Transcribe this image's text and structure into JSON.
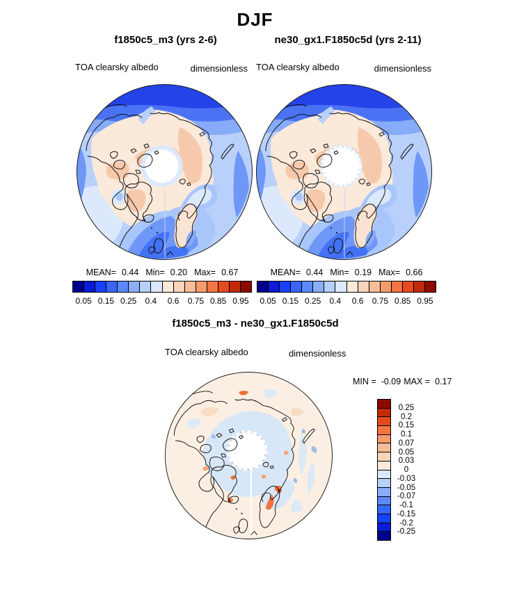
{
  "title": "DJF",
  "panels": [
    {
      "title": "f1850c5_m3 (yrs 2-6)",
      "var_label": "TOA clearsky albedo",
      "units": "dimensionless",
      "stats": {
        "mean_label": "MEAN=",
        "mean": "0.44",
        "min_label": "Min=",
        "min": "0.20",
        "max_label": "Max=",
        "max": "0.67"
      },
      "colorbar": {
        "ticks": [
          "0.05",
          "0.15",
          "0.25",
          "0.4",
          "0.6",
          "0.75",
          "0.85",
          "0.95"
        ],
        "colors": [
          "#00008C",
          "#0A1CD6",
          "#1740FA",
          "#3865FA",
          "#5C88F8",
          "#8AAEF9",
          "#B6CFFB",
          "#DCE9FD",
          "#FBE9DA",
          "#F9D4BA",
          "#F7BC99",
          "#F59B6E",
          "#F37544",
          "#E64B20",
          "#C22A0B",
          "#8C0A00"
        ]
      }
    },
    {
      "title": "ne30_gx1.F1850c5d (yrs 2-11)",
      "var_label": "TOA clearsky albedo",
      "units": "dimensionless",
      "stats": {
        "mean_label": "MEAN=",
        "mean": "0.44",
        "min_label": "Min=",
        "min": "0.19",
        "max_label": "Max=",
        "max": "0.66"
      },
      "colorbar": {
        "ticks": [
          "0.05",
          "0.15",
          "0.25",
          "0.4",
          "0.6",
          "0.75",
          "0.85",
          "0.95"
        ],
        "colors": [
          "#00008C",
          "#0A1CD6",
          "#1740FA",
          "#3865FA",
          "#5C88F8",
          "#8AAEF9",
          "#B6CFFB",
          "#DCE9FD",
          "#FBE9DA",
          "#F9D4BA",
          "#F7BC99",
          "#F59B6E",
          "#F37544",
          "#E64B20",
          "#C22A0B",
          "#8C0A00"
        ]
      }
    }
  ],
  "diff_panel": {
    "title": "f1850c5_m3 - ne30_gx1.F1850c5d",
    "var_label": "TOA clearsky albedo",
    "units": "dimensionless",
    "stats": {
      "min_label": "MIN =",
      "min": "-0.09",
      "max_label": "MAX =",
      "max": "0.17"
    },
    "colorbar": {
      "ticks": [
        "0.25",
        "0.2",
        "0.15",
        "0.1",
        "0.07",
        "0.05",
        "0.03",
        "0",
        "-0.03",
        "-0.05",
        "-0.07",
        "-0.1",
        "-0.15",
        "-0.2",
        "-0.25"
      ],
      "colors": [
        "#8C0A00",
        "#C22A0B",
        "#E64B20",
        "#F37544",
        "#F59B6E",
        "#F7BC99",
        "#F9D4BA",
        "#FBE9DA",
        "#DCE9FD",
        "#B6CFFB",
        "#8AAEF9",
        "#5C88F8",
        "#3865FA",
        "#1740FA",
        "#0A1CD6",
        "#00008C"
      ]
    }
  },
  "chart_data": [
    {
      "type": "heatmap",
      "subtype": "filled-contour polar stereographic map, Northern Hemisphere pole-centered",
      "title": "f1850c5_m3 (yrs 2-6)",
      "season": "DJF",
      "variable": "TOA clearsky albedo",
      "units": "dimensionless",
      "stats": {
        "mean": 0.44,
        "min": 0.2,
        "max": 0.67
      },
      "contour_levels": [
        0.05,
        0.1,
        0.15,
        0.2,
        0.25,
        0.3,
        0.4,
        0.5,
        0.6,
        0.7,
        0.75,
        0.8,
        0.85,
        0.9,
        0.95
      ],
      "labeled_levels": [
        0.05,
        0.15,
        0.25,
        0.4,
        0.6,
        0.75,
        0.85,
        0.95
      ],
      "colormap": "blue-to-red diverging, 16 classes",
      "legend_position": "below"
    },
    {
      "type": "heatmap",
      "subtype": "filled-contour polar stereographic map, Northern Hemisphere pole-centered",
      "title": "ne30_gx1.F1850c5d (yrs 2-11)",
      "season": "DJF",
      "variable": "TOA clearsky albedo",
      "units": "dimensionless",
      "stats": {
        "mean": 0.44,
        "min": 0.19,
        "max": 0.66
      },
      "contour_levels": [
        0.05,
        0.1,
        0.15,
        0.2,
        0.25,
        0.3,
        0.4,
        0.5,
        0.6,
        0.7,
        0.75,
        0.8,
        0.85,
        0.9,
        0.95
      ],
      "labeled_levels": [
        0.05,
        0.15,
        0.25,
        0.4,
        0.6,
        0.75,
        0.85,
        0.95
      ],
      "colormap": "blue-to-red diverging, 16 classes",
      "legend_position": "below"
    },
    {
      "type": "heatmap",
      "subtype": "difference map, filled-contour polar stereographic, Northern Hemisphere pole-centered",
      "title": "f1850c5_m3 - ne30_gx1.F1850c5d",
      "season": "DJF",
      "variable": "TOA clearsky albedo difference",
      "units": "dimensionless",
      "stats": {
        "min": -0.09,
        "max": 0.17
      },
      "contour_levels": [
        -0.25,
        -0.2,
        -0.15,
        -0.1,
        -0.07,
        -0.05,
        -0.03,
        0,
        0.03,
        0.05,
        0.07,
        0.1,
        0.15,
        0.2,
        0.25
      ],
      "colormap": "blue-to-red diverging, 16 classes",
      "legend_position": "right"
    }
  ]
}
